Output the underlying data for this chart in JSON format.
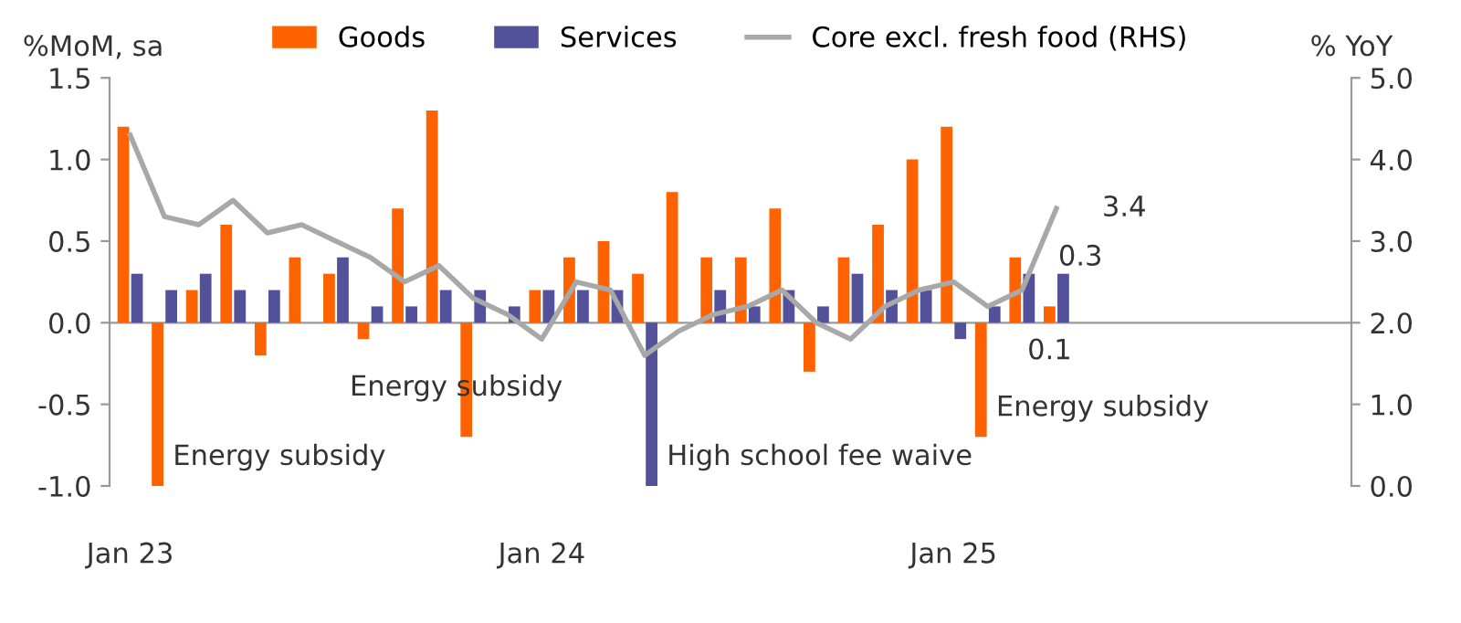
{
  "chart_data": {
    "type": "bar",
    "ylabel": "%MoM, sa",
    "y2label": "% YoY",
    "categories": [
      "Jan 23",
      null,
      null,
      null,
      null,
      null,
      null,
      null,
      null,
      null,
      null,
      null,
      "Jan 24",
      null,
      null,
      null,
      null,
      null,
      null,
      null,
      null,
      null,
      null,
      null,
      "Jan 25",
      null,
      null,
      null,
      null,
      null,
      null,
      null,
      null,
      null,
      null,
      null
    ],
    "series": [
      {
        "name": "Goods",
        "color": "#ff6200",
        "values": [
          1.2,
          -1.0,
          0.2,
          0.6,
          -0.2,
          0.4,
          0.3,
          -0.1,
          0.7,
          1.3,
          -0.7,
          0.0,
          0.2,
          0.4,
          0.5,
          0.3,
          0.8,
          0.4,
          0.4,
          0.7,
          -0.3,
          0.4,
          0.6,
          1.0,
          1.2,
          -0.7,
          0.4,
          0.1,
          null,
          null,
          null,
          null,
          null,
          null,
          null,
          null
        ],
        "value_labels": [
          null,
          null,
          null,
          null,
          null,
          null,
          null,
          null,
          null,
          null,
          null,
          null,
          null,
          null,
          null,
          null,
          null,
          null,
          null,
          null,
          null,
          null,
          null,
          null,
          null,
          null,
          null,
          "0.1",
          null,
          null,
          null,
          null,
          null,
          null,
          null,
          null
        ]
      },
      {
        "name": "Services",
        "color": "#525199",
        "values": [
          0.3,
          0.2,
          0.3,
          0.2,
          0.2,
          0.0,
          0.4,
          0.1,
          0.1,
          0.2,
          0.2,
          0.1,
          0.2,
          0.2,
          0.2,
          -1.0,
          0.0,
          0.2,
          0.1,
          0.2,
          0.1,
          0.3,
          0.2,
          0.2,
          -0.1,
          0.1,
          0.3,
          0.3,
          null,
          null,
          null,
          null,
          null,
          null,
          null,
          null
        ],
        "value_labels": [
          null,
          null,
          null,
          null,
          null,
          null,
          null,
          null,
          null,
          null,
          null,
          null,
          null,
          null,
          null,
          null,
          null,
          null,
          null,
          null,
          null,
          null,
          null,
          null,
          null,
          null,
          null,
          "0.3",
          null,
          null,
          null,
          null,
          null,
          null,
          null,
          null
        ]
      },
      {
        "name": "Core excl. fresh food (RHS)",
        "type": "line",
        "axis": "y2",
        "color": "#a8a8a8",
        "values": [
          4.3,
          3.3,
          3.2,
          3.5,
          3.1,
          3.2,
          3.0,
          2.8,
          2.5,
          2.7,
          2.3,
          2.1,
          1.8,
          2.5,
          2.4,
          1.6,
          1.9,
          2.1,
          2.2,
          2.4,
          2.0,
          1.8,
          2.2,
          2.4,
          2.5,
          2.2,
          2.4,
          3.4,
          null,
          null,
          null,
          null,
          null,
          null,
          null,
          null
        ],
        "value_labels": [
          null,
          null,
          null,
          null,
          null,
          null,
          null,
          null,
          null,
          null,
          null,
          null,
          null,
          null,
          null,
          null,
          null,
          null,
          null,
          null,
          null,
          null,
          null,
          null,
          null,
          null,
          null,
          "3.4",
          null,
          null,
          null,
          null,
          null,
          null,
          null,
          null
        ]
      }
    ],
    "ylim": [
      -1.0,
      1.5
    ],
    "yticks": [
      {
        "value": -1.0,
        "label": "-1.0"
      },
      {
        "value": -0.5,
        "label": "-0.5"
      },
      {
        "value": 0.0,
        "label": "0.0"
      },
      {
        "value": 0.5,
        "label": "0.5"
      },
      {
        "value": 1.0,
        "label": "1.0"
      },
      {
        "value": 1.5,
        "label": "1.5"
      }
    ],
    "y2lim": [
      0.0,
      5.0
    ],
    "y2ticks": [
      {
        "value": 0.0,
        "label": "0.0"
      },
      {
        "value": 1.0,
        "label": "1.0"
      },
      {
        "value": 2.0,
        "label": "2.0"
      },
      {
        "value": 3.0,
        "label": "3.0"
      },
      {
        "value": 4.0,
        "label": "4.0"
      },
      {
        "value": 5.0,
        "label": "5.0"
      }
    ],
    "annotations": [
      "Energy subsidy",
      "Energy subsidy",
      "High school fee waive",
      "Energy subsidy"
    ],
    "legend": "top",
    "marker": "none",
    "line_style": "solid"
  }
}
